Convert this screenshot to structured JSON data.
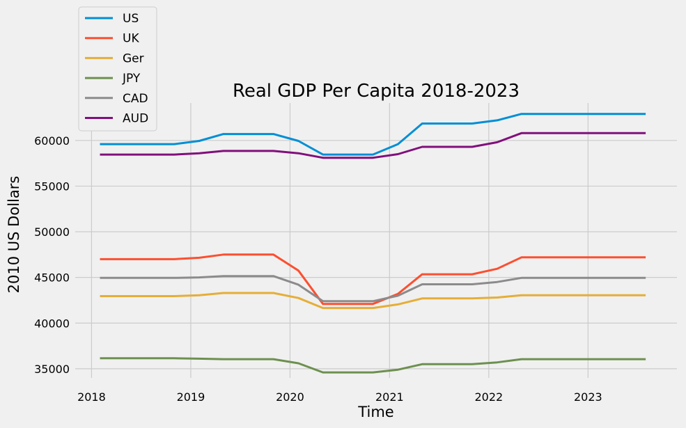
{
  "chart_data": {
    "type": "line",
    "title": "Real GDP Per Capita 2018-2023",
    "xlabel": "Time",
    "ylabel": "2010 US Dollars",
    "xticks": [
      "2018",
      "2019",
      "2020",
      "2021",
      "2022",
      "2023"
    ],
    "yticks": [
      35000,
      40000,
      45000,
      50000,
      55000,
      60000
    ],
    "xlim": [
      "2017-11-02",
      "2023-11-24"
    ],
    "ylim": [
      34000,
      64100
    ],
    "grid": true,
    "legend_position": "top-left",
    "x": [
      "2018-02-01",
      "2018-11-01",
      "2019-02-01",
      "2019-05-01",
      "2019-11-01",
      "2020-02-01",
      "2020-05-01",
      "2020-11-01",
      "2021-02-01",
      "2021-05-01",
      "2021-11-01",
      "2022-02-01",
      "2022-05-01",
      "2022-11-01",
      "2023-02-01",
      "2023-08-01"
    ],
    "series": [
      {
        "name": "US",
        "color": "#008fd5",
        "values": [
          59600,
          59600,
          59950,
          60700,
          60700,
          59950,
          58450,
          58450,
          59600,
          61850,
          61850,
          62200,
          62900,
          62900,
          62900,
          62900
        ]
      },
      {
        "name": "UK",
        "color": "#fc4f30",
        "values": [
          47000,
          47000,
          47150,
          47500,
          47500,
          45750,
          42100,
          42100,
          43200,
          45350,
          45350,
          45950,
          47200,
          47200,
          47200,
          47200
        ]
      },
      {
        "name": "Ger",
        "color": "#e5ae38",
        "values": [
          42950,
          42950,
          43050,
          43300,
          43300,
          42750,
          41650,
          41650,
          42050,
          42700,
          42700,
          42800,
          43050,
          43050,
          43050,
          43050
        ]
      },
      {
        "name": "JPY",
        "color": "#6d904f",
        "values": [
          36150,
          36150,
          36100,
          36050,
          36050,
          35600,
          34600,
          34600,
          34900,
          35500,
          35500,
          35700,
          36050,
          36050,
          36050,
          36050
        ]
      },
      {
        "name": "CAD",
        "color": "#8b8b8b",
        "values": [
          44950,
          44950,
          45000,
          45150,
          45150,
          44200,
          42400,
          42400,
          43000,
          44250,
          44250,
          44500,
          44950,
          44950,
          44950,
          44950
        ]
      },
      {
        "name": "AUD",
        "color": "#810f7c",
        "values": [
          58450,
          58450,
          58600,
          58850,
          58850,
          58600,
          58100,
          58100,
          58500,
          59300,
          59300,
          59800,
          60800,
          60800,
          60800,
          60800
        ]
      }
    ]
  }
}
